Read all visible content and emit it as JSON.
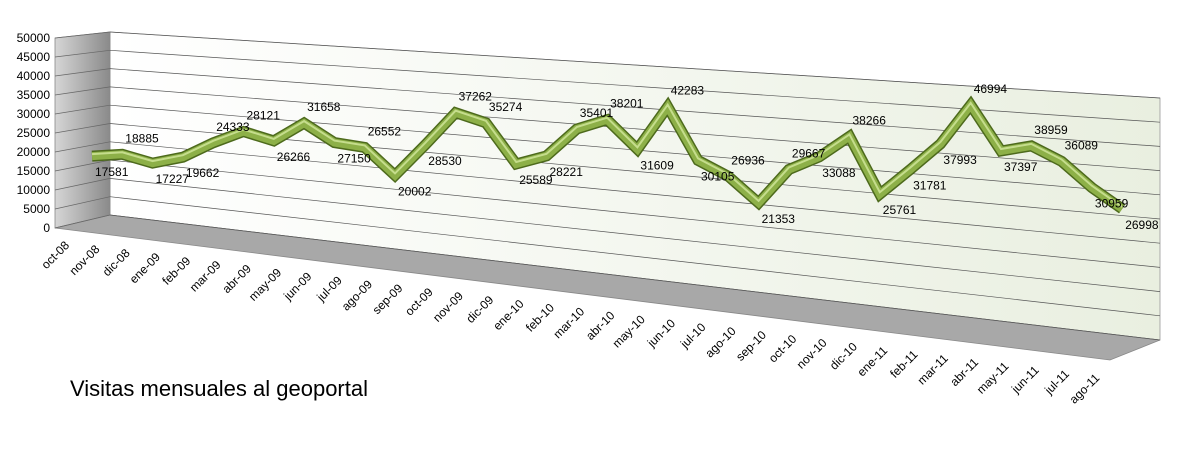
{
  "chart_data": {
    "type": "line",
    "title": "Visitas mensuales al geoportal",
    "categories": [
      "oct-08",
      "nov-08",
      "dic-08",
      "ene-09",
      "feb-09",
      "mar-09",
      "abr-09",
      "may-09",
      "jun-09",
      "jul-09",
      "ago-09",
      "sep-09",
      "oct-09",
      "nov-09",
      "dic-09",
      "ene-10",
      "feb-10",
      "mar-10",
      "abr-10",
      "may-10",
      "jun-10",
      "jul-10",
      "ago-10",
      "sep-10",
      "oct-10",
      "nov-10",
      "dic-10",
      "ene-11",
      "feb-11",
      "mar-11",
      "abr-11",
      "may-11",
      "jun-11",
      "jul-11",
      "ago-11"
    ],
    "values": [
      17581,
      18885,
      17227,
      19662,
      24333,
      28121,
      26266,
      31658,
      27150,
      26552,
      20002,
      28530,
      37262,
      35274,
      25589,
      28221,
      35401,
      38201,
      31609,
      42283,
      30105,
      26936,
      21353,
      29667,
      33088,
      38266,
      25761,
      31781,
      37993,
      46994,
      37397,
      38959,
      36089,
      30959,
      26998
    ],
    "color": "#8db048",
    "ylim": [
      0,
      50000
    ],
    "yticks": [
      0,
      5000,
      10000,
      15000,
      20000,
      25000,
      30000,
      35000,
      40000,
      45000,
      50000
    ],
    "grid": true
  }
}
